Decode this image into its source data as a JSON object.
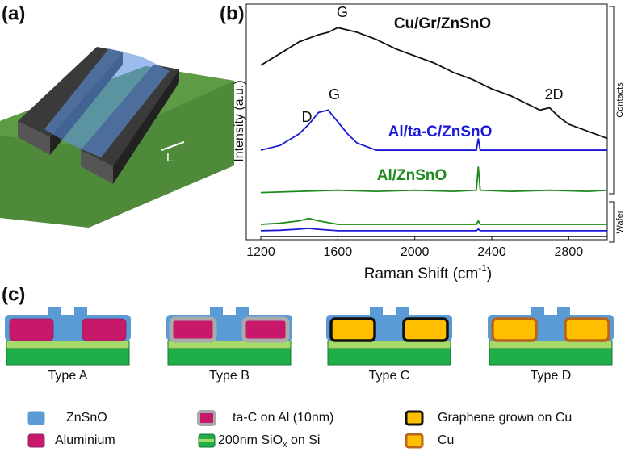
{
  "panel_labels": [
    "(a)",
    "(b)",
    "(c)"
  ],
  "device_illustration": {
    "dimension_label": "L"
  },
  "chart_data": {
    "type": "line",
    "ylabel": "Intensity (a.u.)",
    "xlabel_parts": [
      "Raman Shift (cm",
      "-1",
      ")"
    ],
    "xlim": [
      1200,
      3000
    ],
    "xticks": [
      1200,
      1600,
      2000,
      2400,
      2800
    ],
    "ylim": [
      0,
      100
    ],
    "annotations": [
      "G",
      "G",
      "2D",
      "D"
    ],
    "region_labels": [
      "Contacts",
      "Wafer"
    ],
    "series": [
      {
        "name": "Cu/Gr/ZnSnO",
        "color": "#111111",
        "x": [
          1200,
          1300,
          1400,
          1500,
          1550,
          1600,
          1700,
          1800,
          1900,
          2000,
          2100,
          2200,
          2300,
          2400,
          2500,
          2600,
          2650,
          2700,
          2750,
          2800,
          2900,
          3000
        ],
        "values": [
          74,
          79,
          84,
          87,
          88,
          90,
          88,
          85,
          81,
          78,
          75,
          71,
          68,
          64,
          61,
          57,
          55,
          56,
          52,
          49,
          46,
          43
        ]
      },
      {
        "name": "Al/ta-C/ZnSnO",
        "color": "#1a1ad6",
        "x": [
          1200,
          1300,
          1400,
          1450,
          1500,
          1550,
          1600,
          1650,
          1700,
          1800,
          2000,
          2200,
          2320,
          2330,
          2340,
          2500,
          2700,
          2900,
          3000
        ],
        "values": [
          38,
          40,
          45,
          49,
          54,
          55,
          50,
          45,
          41,
          38,
          38,
          38,
          38,
          43,
          38,
          38,
          38,
          38,
          38
        ]
      },
      {
        "name": "Al/ZnSnO",
        "color": "#1e8a1e",
        "x": [
          1200,
          1400,
          1600,
          1800,
          2000,
          2200,
          2320,
          2330,
          2340,
          2500,
          2700,
          2900,
          3000
        ],
        "values": [
          20,
          20.5,
          21,
          20.5,
          21,
          20.5,
          21,
          31,
          21,
          20.5,
          21,
          20.5,
          21
        ]
      },
      {
        "color": "#1e8a1e",
        "x": [
          1200,
          1300,
          1400,
          1450,
          1500,
          1600,
          1800,
          2000,
          2200,
          2320,
          2330,
          2340,
          2500,
          2700,
          2900,
          3000
        ],
        "values": [
          6.5,
          7,
          8,
          9,
          8,
          6.5,
          6.5,
          6.5,
          6.5,
          6.5,
          8,
          6.5,
          6.5,
          6.5,
          6.5,
          6.5
        ]
      },
      {
        "color": "#1a1ad6",
        "x": [
          1200,
          1300,
          1400,
          1450,
          1500,
          1600,
          1800,
          2000,
          2200,
          2320,
          2330,
          2340,
          2500,
          2700,
          2900,
          3000
        ],
        "values": [
          3.8,
          4,
          4.5,
          4.8,
          4.4,
          3.8,
          3.8,
          3.8,
          3.8,
          3.8,
          4.5,
          3.8,
          3.8,
          3.8,
          3.8,
          3.8
        ]
      },
      {
        "color": "#111111",
        "x": [
          1200,
          1600,
          2000,
          2400,
          2800,
          3000
        ],
        "values": [
          1.4,
          1.4,
          1.4,
          1.4,
          1.4,
          1.4
        ]
      }
    ]
  },
  "schematic": {
    "types": [
      "Type A",
      "Type B",
      "Type C",
      "Type D"
    ],
    "legend": [
      "ZnSnO",
      "Aluminium",
      "ta-C on Al (10nm)",
      {
        "pre": "200nm SiO",
        "sub": "x",
        "post": " on Si"
      },
      "Graphene grown on Cu",
      "Cu"
    ]
  }
}
